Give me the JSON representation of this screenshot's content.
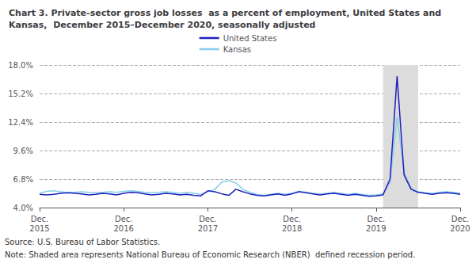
{
  "chart_data": {
    "type": "line",
    "title": "Chart 3. Private-sector gross job losses  as a percent of employment, United States and\nKansas,  December 2015–December 2020, seasonally adjusted",
    "annotations": [
      "Source: U.S. Bureau of Labor Statistics.",
      "Note: Shaded area represents National Bureau of Economic Research (NBER)  defined recession period."
    ],
    "categories": [
      "Dec.\n2015",
      null,
      null,
      null,
      null,
      null,
      null,
      null,
      null,
      null,
      null,
      null,
      "Dec.\n2016",
      null,
      null,
      null,
      null,
      null,
      null,
      null,
      null,
      null,
      null,
      null,
      "Dec.\n2017",
      null,
      null,
      null,
      null,
      null,
      null,
      null,
      null,
      null,
      null,
      null,
      "Dec.\n2018",
      null,
      null,
      null,
      null,
      null,
      null,
      null,
      null,
      null,
      null,
      null,
      "Dec.\n2019",
      null,
      null,
      null,
      null,
      null,
      null,
      null,
      null,
      null,
      null,
      null,
      "Dec.\n2020"
    ],
    "series": [
      {
        "name": "United States",
        "color": "#1F1FBF",
        "values": [
          5.3,
          5.25,
          5.3,
          5.4,
          5.45,
          5.4,
          5.35,
          5.25,
          5.3,
          5.4,
          5.35,
          5.25,
          5.4,
          5.5,
          5.45,
          5.35,
          5.25,
          5.3,
          5.4,
          5.35,
          5.25,
          5.3,
          5.2,
          5.15,
          5.65,
          5.55,
          5.35,
          5.2,
          5.8,
          5.55,
          5.35,
          5.2,
          5.15,
          5.25,
          5.35,
          5.2,
          5.35,
          5.55,
          5.45,
          5.35,
          5.25,
          5.35,
          5.4,
          5.3,
          5.2,
          5.3,
          5.2,
          5.1,
          5.15,
          5.25,
          6.8,
          16.9,
          7.2,
          5.8,
          5.5,
          5.4,
          5.3,
          5.4,
          5.45,
          5.4,
          5.3
        ]
      },
      {
        "name": "Kansas",
        "color": "#87CEEB",
        "values": [
          5.4,
          5.6,
          5.65,
          5.55,
          5.45,
          5.5,
          5.55,
          5.5,
          5.45,
          5.5,
          5.55,
          5.5,
          5.6,
          5.65,
          5.6,
          5.5,
          5.45,
          5.5,
          5.55,
          5.5,
          5.4,
          5.5,
          5.4,
          5.3,
          5.55,
          5.8,
          6.5,
          6.65,
          6.4,
          5.8,
          5.5,
          5.3,
          5.2,
          5.3,
          5.4,
          5.3,
          5.4,
          5.6,
          5.5,
          5.4,
          5.3,
          5.4,
          5.5,
          5.4,
          5.3,
          5.4,
          5.3,
          5.2,
          5.25,
          5.35,
          6.5,
          12.9,
          7.5,
          5.9,
          5.55,
          5.45,
          5.4,
          5.5,
          5.55,
          5.5,
          5.4
        ]
      }
    ],
    "shaded_span": {
      "from": 49,
      "to": 54,
      "color": "#DCDCDC"
    },
    "ylim": [
      4.0,
      18.0
    ],
    "yticks": [
      {
        "value": 4.0,
        "label": "4.0%"
      },
      {
        "value": 6.8,
        "label": "6.8%"
      },
      {
        "value": 9.6,
        "label": "9.6%"
      },
      {
        "value": 12.4,
        "label": "12.4%"
      },
      {
        "value": 15.2,
        "label": "15.2%"
      },
      {
        "value": 18.0,
        "label": "18.0%"
      }
    ],
    "grid": true,
    "legend": "top"
  }
}
